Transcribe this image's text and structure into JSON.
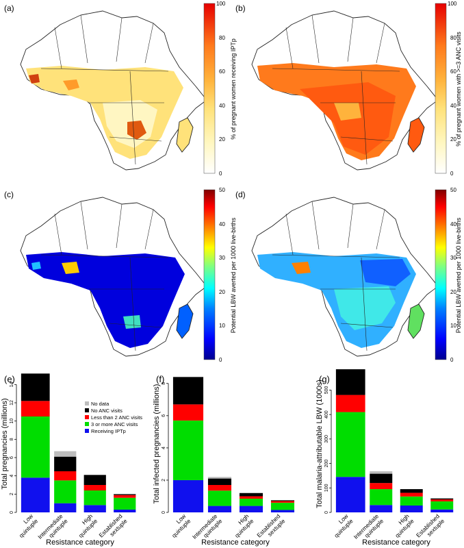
{
  "panels": {
    "a": {
      "label": "(a)",
      "colorbar_label": "% of pregnant women receiving IPTp",
      "ticks": [
        "0",
        "20",
        "40",
        "60",
        "80",
        "100"
      ]
    },
    "b": {
      "label": "(b)",
      "colorbar_label": "% of pregnant women with >=3 ANC visits",
      "ticks": [
        "0",
        "20",
        "40",
        "60",
        "80",
        "100"
      ]
    },
    "c": {
      "label": "(c)",
      "colorbar_label": "Potential LBW averted per 1000 live-births",
      "ticks": [
        "0",
        "10",
        "20",
        "30",
        "40",
        "50"
      ]
    },
    "d": {
      "label": "(d)",
      "colorbar_label": "Potential LBW averted per 1000 live-births",
      "ticks": [
        "0",
        "10",
        "20",
        "30",
        "40",
        "50"
      ]
    }
  },
  "colors": {
    "heat_scale": [
      "#ffffff",
      "#fff9c8",
      "#ffe88a",
      "#ffc64c",
      "#ff9b2a",
      "#ff5a10",
      "#e80000"
    ],
    "jet_scale": [
      "#00008f",
      "#0000ff",
      "#0080ff",
      "#00ffff",
      "#80ff80",
      "#ffff00",
      "#ff8000",
      "#ff0000",
      "#800000"
    ],
    "series": {
      "No data": "#bdbdbd",
      "No ANC visits": "#000000",
      "Less than 2 ANC visits": "#ff0000",
      "3 or more ANC visits": "#00dd00",
      "Receiving IPTp": "#1010ee"
    }
  },
  "legend": [
    "No data",
    "No ANC visits",
    "Less than 2 ANC visits",
    "3 or more ANC visits",
    "Receiving IPTp"
  ],
  "chart_data": [
    {
      "type": "bar",
      "stacked": true,
      "panel_label": "(e)",
      "categories": [
        "Low quintuple",
        "Intermediate quintuple",
        "High quintuple",
        "Established sextuple"
      ],
      "category_lines": [
        [
          "Low",
          "quintuple"
        ],
        [
          "Intermediate",
          "quintuple"
        ],
        [
          "High",
          "quintuple"
        ],
        [
          "Established",
          "sextuple"
        ]
      ],
      "xlabel": "Resistance category",
      "ylabel": "Total pregnancies (millions)",
      "ylim": [
        0,
        15
      ],
      "yticks": [
        "0",
        "2",
        "4",
        "6",
        "8",
        "10",
        "12",
        "14"
      ],
      "legend_position": "top-right",
      "series": [
        {
          "name": "Receiving IPTp",
          "values": [
            3.8,
            1.0,
            0.8,
            0.3
          ]
        },
        {
          "name": "3 or more ANC visits",
          "values": [
            6.7,
            2.5,
            1.6,
            1.3
          ]
        },
        {
          "name": "Less than 2 ANC visits",
          "values": [
            1.7,
            1.0,
            0.6,
            0.3
          ]
        },
        {
          "name": "No ANC visits",
          "values": [
            3.0,
            1.6,
            1.1,
            0.1
          ]
        },
        {
          "name": "No data",
          "values": [
            0.0,
            0.6,
            0.0,
            0.0
          ]
        }
      ]
    },
    {
      "type": "bar",
      "stacked": true,
      "panel_label": "(f)",
      "categories": [
        "Low quintuple",
        "Intermediate quintuple",
        "High quintuple",
        "Established sextuple"
      ],
      "category_lines": [
        [
          "Low",
          "quintuple"
        ],
        [
          "Intermediate",
          "quintuple"
        ],
        [
          "High",
          "quintuple"
        ],
        [
          "Established",
          "sextuple"
        ]
      ],
      "xlabel": "Resistance category",
      "ylabel": "Total infected pregnancies (millions)",
      "ylim": [
        0,
        8.5
      ],
      "yticks": [
        "0",
        "2",
        "4",
        "6",
        "8"
      ],
      "series": [
        {
          "name": "Receiving IPTp",
          "values": [
            2.0,
            0.4,
            0.4,
            0.15
          ]
        },
        {
          "name": "3 or more ANC visits",
          "values": [
            3.7,
            0.95,
            0.45,
            0.45
          ]
        },
        {
          "name": "Less than 2 ANC visits",
          "values": [
            1.0,
            0.35,
            0.15,
            0.1
          ]
        },
        {
          "name": "No ANC visits",
          "values": [
            1.7,
            0.4,
            0.2,
            0.05
          ]
        },
        {
          "name": "No data",
          "values": [
            0.0,
            0.1,
            0.0,
            0.0
          ]
        }
      ]
    },
    {
      "type": "bar",
      "stacked": true,
      "panel_label": "(g)",
      "categories": [
        "Low quintuple",
        "Intermediate quintuple",
        "High quintuple",
        "Established sextuple"
      ],
      "category_lines": [
        [
          "Low",
          "quintuple"
        ],
        [
          "Intermediate",
          "quintuple"
        ],
        [
          "High",
          "quintuple"
        ],
        [
          "Established",
          "sextuple"
        ]
      ],
      "xlabel": "Resistance category",
      "ylabel": "Total malaria-attributable LBW (1000s)",
      "ylim": [
        0,
        560
      ],
      "yticks": [
        "0",
        "100",
        "200",
        "300",
        "400",
        "500"
      ],
      "series": [
        {
          "name": "Receiving IPTp",
          "values": [
            145,
            30,
            28,
            12
          ]
        },
        {
          "name": "3 or more ANC visits",
          "values": [
            265,
            65,
            37,
            33
          ]
        },
        {
          "name": "Less than 2 ANC visits",
          "values": [
            70,
            25,
            15,
            8
          ]
        },
        {
          "name": "No ANC visits",
          "values": [
            105,
            38,
            15,
            4
          ]
        },
        {
          "name": "No data",
          "values": [
            0,
            10,
            0,
            0
          ]
        }
      ]
    }
  ]
}
